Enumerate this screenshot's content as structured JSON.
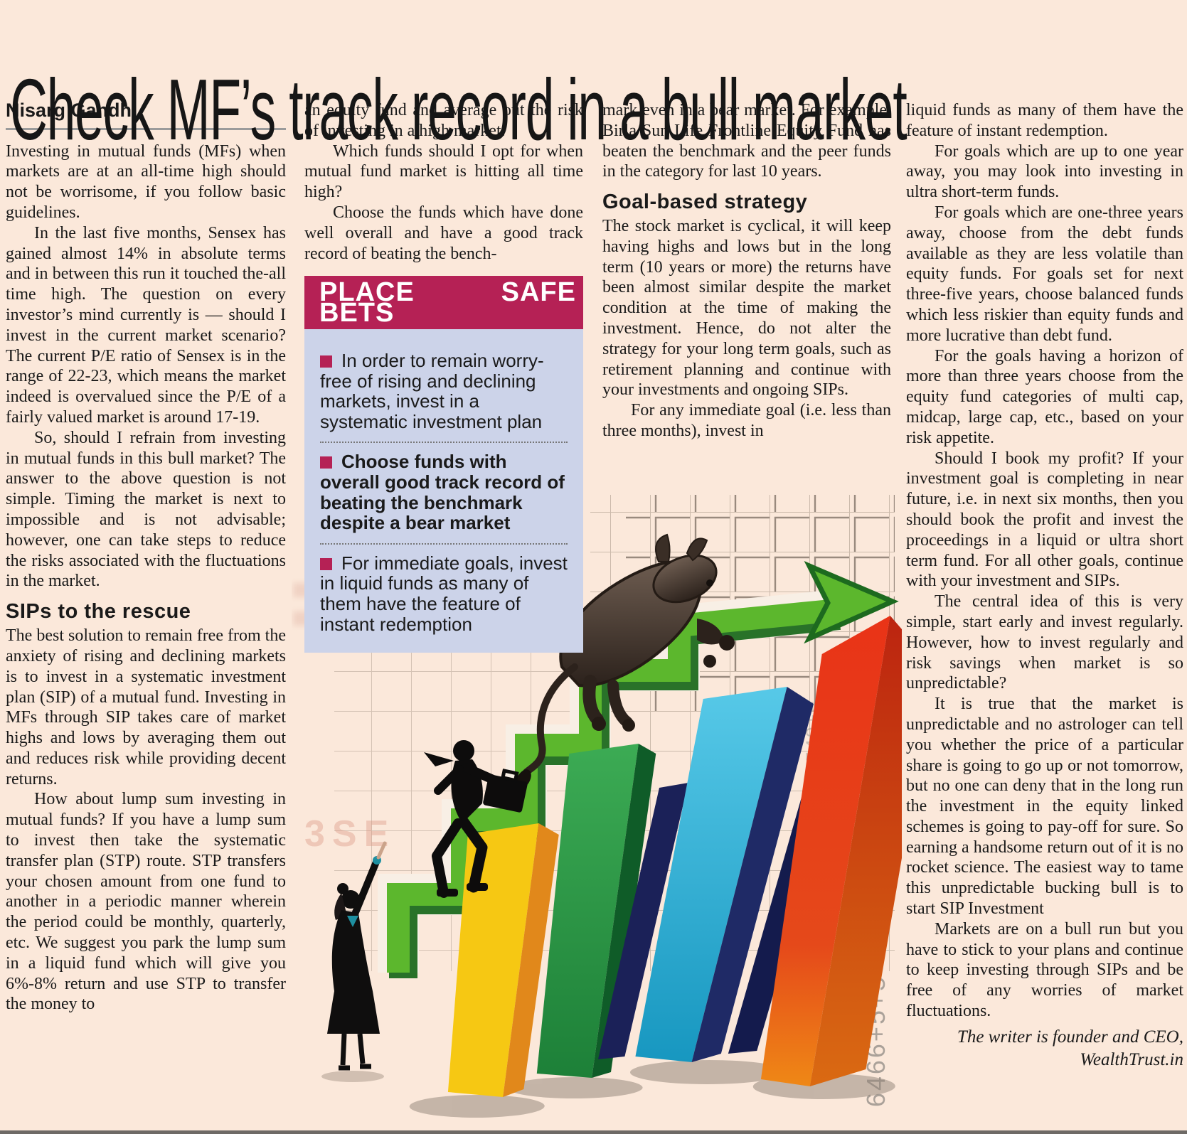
{
  "page": {
    "headline": "Check MF’s track record in a bull market",
    "byline": "Nisarg Gandhi"
  },
  "article": {
    "columns": [
      {
        "blocks": [
          {
            "t": "p",
            "text": "Investing in mutual funds (MFs) when markets are at an all-time high should not be worrisome, if you follow basic guidelines."
          },
          {
            "t": "p",
            "indent": true,
            "text": "In the last five months, Sensex has gained almost 14% in absolute terms and in between this run it touched the-all time high. The question on every investor’s mind currently is — should I invest in the current market scenario? The current P/E ratio of Sensex is in the range of 22-23, which means the market indeed is overvalued since the P/E of a fairly valued market is around 17-19."
          },
          {
            "t": "p",
            "indent": true,
            "text": "So, should I refrain from investing in mutual funds in this bull market? The answer to the above question is not simple. Timing the market is next to impossible and is not advisable; however, one can take steps to reduce the risks associated with the fluctuations in the market."
          },
          {
            "t": "h",
            "text": "SIPs to the rescue"
          },
          {
            "t": "p",
            "text": "The best solution to remain free from the anxiety of rising and declining markets is to invest in a systematic investment plan (SIP) of a mutual fund. Investing in MFs through SIP takes care of market highs and lows by averaging them out and reduces risk while providing decent returns."
          },
          {
            "t": "p",
            "indent": true,
            "text": "How about lump sum investing in mutual funds? If you have a lump sum to invest then take the systematic transfer plan (STP) route. STP transfers your chosen amount from one fund to another in a periodic manner wherein the period could be monthly, quarterly, etc. We suggest you park the lump sum in a liquid fund which will give you 6%-8% return and use STP to transfer the money to"
          }
        ]
      },
      {
        "blocks": [
          {
            "t": "p",
            "text": "an equity fund and average out the risk of investing in a high market."
          },
          {
            "t": "p",
            "indent": true,
            "text": "Which funds should I opt for when mutual fund market is hitting all time high?"
          },
          {
            "t": "p",
            "indent": true,
            "text": "Choose the funds which have done well overall and have a good track record of beating the bench-"
          }
        ]
      },
      {
        "blocks": [
          {
            "t": "p",
            "text": "mark even in a bear market. For example, Birla Sun Life Frontline Equity Fund has beaten the benchmark and the peer funds in the category for last 10 years."
          },
          {
            "t": "h",
            "text": "Goal-based strategy"
          },
          {
            "t": "p",
            "text": "The stock market is cyclical, it will keep having highs  and lows but in the long term (10 years or more) the returns have been almost similar despite the market condition at the time of making the investment. Hence, do not alter the strategy for your long term goals, such as retirement planning and continue with your investments and ongoing SIPs."
          },
          {
            "t": "p",
            "indent": true,
            "text": "For any immediate goal (i.e. less than three months), invest in"
          }
        ]
      },
      {
        "blocks": [
          {
            "t": "p",
            "text": "liquid funds as many of them have the feature of instant redemption."
          },
          {
            "t": "p",
            "indent": true,
            "text": "For goals which are up to one year away, you may look into investing in ultra short-term funds."
          },
          {
            "t": "p",
            "indent": true,
            "text": "For goals which are one-three years away, choose from the debt funds available as they are less volatile than equity funds. For goals set for next three-five years, choose balanced funds which less riskier than equity funds and more lucrative than debt fund."
          },
          {
            "t": "p",
            "indent": true,
            "text": "For the goals having a horizon of more than three years choose from the equity fund categories of multi cap, midcap, large cap, etc., based on your risk appetite."
          },
          {
            "t": "p",
            "indent": true,
            "text": "Should I book my profit? If your investment goal is completing in near future, i.e. in next six months, then you should book the profit and invest the proceedings in a liquid or ultra short term fund. For all other goals, continue with your investment and SIPs."
          },
          {
            "t": "p",
            "indent": true,
            "text": "The central idea of this is very simple, start early and invest regularly. However, how to invest regularly and risk savings when market is so unpredictable?"
          },
          {
            "t": "p",
            "indent": true,
            "text": "It is true that the market is unpredictable and no astrologer can tell you whether the price of a particular share is going to go up or not tomorrow, but no one can deny that in the long run the investment in the equity linked schemes is going to pay-off for sure. So earning a handsome return out of it is no rocket science. The easiest way to tame this unpredictable bucking bull is to start SIP Investment"
          },
          {
            "t": "p",
            "indent": true,
            "text": "Markets are on a bull run but you have to stick to your plans and continue to keep investing through SIPs and be free of any worries of market fluctuations."
          },
          {
            "t": "credit",
            "text": "The writer is founder and CEO,\nWealthTrust.in"
          }
        ]
      }
    ]
  },
  "box": {
    "title": "PLACE SAFE BETS",
    "accent_color": "#b52155",
    "body_bg": "#ccd3e9",
    "items": [
      {
        "text": "In order to remain worry-free of rising and declining markets, invest in a systematic investment plan",
        "bold": false
      },
      {
        "text": "Choose funds with overall good track record of beating the benchmark despite a bear market",
        "bold": true
      },
      {
        "text": "For immediate goals, invest in liquid funds as many of them have the feature of instant redemption",
        "bold": false
      }
    ]
  },
  "illustration": {
    "description": "Bull leaping up a green zigzag growth arrow over rising 3D bar chart; businessman with briefcase climbing the steps; woman pointing upward",
    "watermarks": [
      "5+5  96+05 05046540+E",
      "6466+5+5+6359+"
    ],
    "bar_colors": [
      "#f6c813",
      "#2f9e49",
      "#35b6d9",
      "#1b2158",
      "#e93317"
    ],
    "arrow_color": "#5cb72d"
  }
}
